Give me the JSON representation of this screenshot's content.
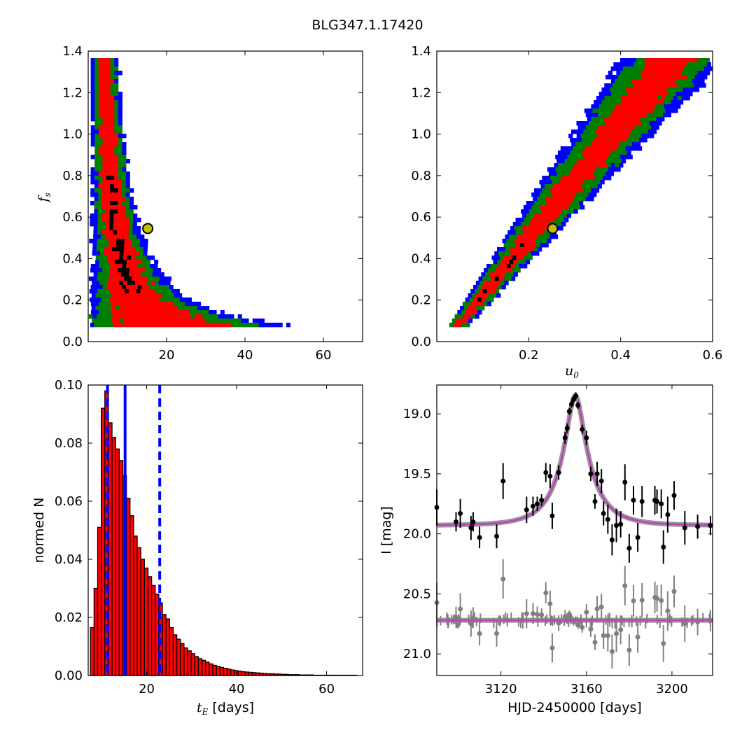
{
  "figure": {
    "title": "BLG347.1.17420"
  },
  "colors": {
    "ring_1sigma": "#000000",
    "ring_2sigma": "#ff0000",
    "ring_3sigma": "#008000",
    "ring_4sigma": "#0000ff",
    "marker_fill": "#bfbf00",
    "hist_bar": "#ff0000",
    "hist_edge": "#000000",
    "percentile_line": "#0000ff",
    "model_line": "#bf40bf",
    "model_halo": "#808080",
    "residual_points": "#808080",
    "data_points": "#000000"
  },
  "chart_data": [
    {
      "panel": "top-left",
      "type": "heatmap",
      "description": "2D posterior density of source flux fraction versus Einstein timescale, coloured by confidence level (black, red, green, blue)",
      "xlabel": "",
      "ylabel_symbol": "f",
      "ylabel_sub": "s",
      "xlim": [
        0,
        70
      ],
      "ylim": [
        0,
        1.4
      ],
      "xticks": [
        "20",
        "40",
        "60"
      ],
      "xtick_values": [
        20,
        40,
        60
      ],
      "yticks": [
        "0.0",
        "0.2",
        "0.4",
        "0.6",
        "0.8",
        "1.0",
        "1.2",
        "1.4"
      ],
      "ytick_values": [
        0,
        0.2,
        0.4,
        0.6,
        0.8,
        1.0,
        1.2,
        1.4
      ],
      "ridge_model": "f_s = 10.5 / x^1.55",
      "best_fit": {
        "x": 15.2,
        "y": 0.545
      }
    },
    {
      "panel": "top-right",
      "type": "heatmap",
      "description": "2D posterior density of source flux fraction versus impact parameter",
      "xlabel_symbol": "u",
      "xlabel_sub": "0",
      "xlim": [
        0,
        0.6
      ],
      "ylim": [
        0,
        1.4
      ],
      "xticks": [
        "0.2",
        "0.4",
        "0.6"
      ],
      "xtick_values": [
        0.2,
        0.4,
        0.6
      ],
      "yticks": [
        "0.0",
        "0.2",
        "0.4",
        "0.6",
        "0.8",
        "1.0",
        "1.2",
        "1.4"
      ],
      "ytick_values": [
        0,
        0.2,
        0.4,
        0.6,
        0.8,
        1.0,
        1.2,
        1.4
      ],
      "ridge_model": "linear from (0.04, 0.08) to (0.52, 1.4)",
      "best_fit": {
        "x": 0.252,
        "y": 0.545
      }
    },
    {
      "panel": "bottom-left",
      "type": "bar",
      "xlabel_symbol": "t",
      "xlabel_sub": "E",
      "xlabel_unit": " [days]",
      "ylabel": "normed N",
      "xlim": [
        7,
        68
      ],
      "ylim": [
        0,
        0.1
      ],
      "xticks": [
        "20",
        "40",
        "60"
      ],
      "xtick_values": [
        20,
        40,
        60
      ],
      "yticks": [
        "0.00",
        "0.02",
        "0.04",
        "0.06",
        "0.08",
        "0.10"
      ],
      "ytick_values": [
        0,
        0.02,
        0.04,
        0.06,
        0.08,
        0.1
      ],
      "bin_start": 7.5,
      "bin_width": 0.8,
      "values": [
        0.0165,
        0.03,
        0.051,
        0.092,
        0.098,
        0.087,
        0.082,
        0.078,
        0.074,
        0.0688,
        0.061,
        0.055,
        0.048,
        0.044,
        0.04,
        0.037,
        0.034,
        0.031,
        0.028,
        0.025,
        0.021,
        0.0195,
        0.0165,
        0.014,
        0.0125,
        0.011,
        0.0095,
        0.0085,
        0.0075,
        0.0065,
        0.0058,
        0.0052,
        0.0046,
        0.004,
        0.0035,
        0.0031,
        0.0028,
        0.0025,
        0.0022,
        0.0019,
        0.0017,
        0.0015,
        0.0013,
        0.0012,
        0.0011,
        0.001,
        0.0009,
        0.0008,
        0.0007,
        0.0006,
        0.0006,
        0.0005,
        0.0005,
        0.0004,
        0.0004,
        0.0003,
        0.0003,
        0.0003,
        0.0002,
        0.0002,
        0.0002,
        0.0002,
        0.0001,
        0.0001,
        0.0001,
        0.0001,
        0.0001,
        0.0001,
        0.0001,
        0.0001,
        0.0001,
        0.0001,
        0.0001,
        0.0001
      ],
      "median": 15.2,
      "percentile_lines": [
        11.3,
        22.9
      ]
    },
    {
      "panel": "bottom-right",
      "type": "scatter",
      "xlabel": "HJD-2450000 [days]",
      "ylabel": "I [mag]",
      "xlim": [
        3090,
        3219
      ],
      "ylim": [
        21.18,
        18.76
      ],
      "y_inverted": true,
      "xticks": [
        "3120",
        "3160",
        "3200"
      ],
      "xtick_values": [
        3120,
        3160,
        3200
      ],
      "yticks": [
        "19.0",
        "19.5",
        "20.0",
        "20.5",
        "21.0"
      ],
      "ytick_values": [
        19.0,
        19.5,
        20.0,
        20.5,
        21.0
      ],
      "model": {
        "baseline": 19.93,
        "peak_mag": 18.85,
        "t0": 3154.8,
        "tE": 15.2,
        "u0": 0.252
      },
      "residual_offset": 20.72,
      "points": [
        {
          "x": 3090,
          "y": 19.78,
          "err": 0.15
        },
        {
          "x": 3099,
          "y": 19.9,
          "err": 0.08
        },
        {
          "x": 3101,
          "y": 19.83,
          "err": 0.12
        },
        {
          "x": 3106,
          "y": 19.95,
          "err": 0.1
        },
        {
          "x": 3107,
          "y": 19.9,
          "err": 0.08
        },
        {
          "x": 3110,
          "y": 20.03,
          "err": 0.09
        },
        {
          "x": 3118,
          "y": 20.02,
          "err": 0.1
        },
        {
          "x": 3121,
          "y": 19.56,
          "err": 0.15
        },
        {
          "x": 3132,
          "y": 19.8,
          "err": 0.11
        },
        {
          "x": 3135,
          "y": 19.77,
          "err": 0.08
        },
        {
          "x": 3137,
          "y": 19.75,
          "err": 0.06
        },
        {
          "x": 3139,
          "y": 19.72,
          "err": 0.05
        },
        {
          "x": 3141,
          "y": 19.49,
          "err": 0.08
        },
        {
          "x": 3143,
          "y": 19.52,
          "err": 0.1
        },
        {
          "x": 3144,
          "y": 19.85,
          "err": 0.11
        },
        {
          "x": 3147,
          "y": 19.49,
          "err": 0.06
        },
        {
          "x": 3150,
          "y": 19.2,
          "err": 0.05
        },
        {
          "x": 3151,
          "y": 19.12,
          "err": 0.04
        },
        {
          "x": 3152,
          "y": 18.98,
          "err": 0.03
        },
        {
          "x": 3153,
          "y": 18.92,
          "err": 0.03
        },
        {
          "x": 3154,
          "y": 18.88,
          "err": 0.03
        },
        {
          "x": 3155,
          "y": 18.85,
          "err": 0.03
        },
        {
          "x": 3156,
          "y": 18.93,
          "err": 0.03
        },
        {
          "x": 3158,
          "y": 19.13,
          "err": 0.04
        },
        {
          "x": 3160,
          "y": 19.2,
          "err": 0.06
        },
        {
          "x": 3162,
          "y": 19.5,
          "err": 0.06
        },
        {
          "x": 3164,
          "y": 19.73,
          "err": 0.06
        },
        {
          "x": 3165,
          "y": 19.5,
          "err": 0.1
        },
        {
          "x": 3167,
          "y": 19.56,
          "err": 0.1
        },
        {
          "x": 3168,
          "y": 19.83,
          "err": 0.1
        },
        {
          "x": 3170,
          "y": 19.88,
          "err": 0.12
        },
        {
          "x": 3172,
          "y": 20.05,
          "err": 0.13
        },
        {
          "x": 3174,
          "y": 19.93,
          "err": 0.14
        },
        {
          "x": 3176,
          "y": 19.92,
          "err": 0.11
        },
        {
          "x": 3178,
          "y": 19.57,
          "err": 0.15
        },
        {
          "x": 3180,
          "y": 20.12,
          "err": 0.12
        },
        {
          "x": 3182,
          "y": 19.72,
          "err": 0.12
        },
        {
          "x": 3184,
          "y": 20.03,
          "err": 0.12
        },
        {
          "x": 3186,
          "y": 19.73,
          "err": 0.13
        },
        {
          "x": 3192,
          "y": 19.72,
          "err": 0.12
        },
        {
          "x": 3193,
          "y": 19.73,
          "err": 0.1
        },
        {
          "x": 3195,
          "y": 19.75,
          "err": 0.12
        },
        {
          "x": 3196,
          "y": 20.11,
          "err": 0.14
        },
        {
          "x": 3198,
          "y": 19.84,
          "err": 0.15
        },
        {
          "x": 3201,
          "y": 19.68,
          "err": 0.12
        },
        {
          "x": 3206,
          "y": 19.95,
          "err": 0.14
        },
        {
          "x": 3212,
          "y": 19.94,
          "err": 0.1
        },
        {
          "x": 3218,
          "y": 19.93,
          "err": 0.08
        }
      ]
    }
  ]
}
